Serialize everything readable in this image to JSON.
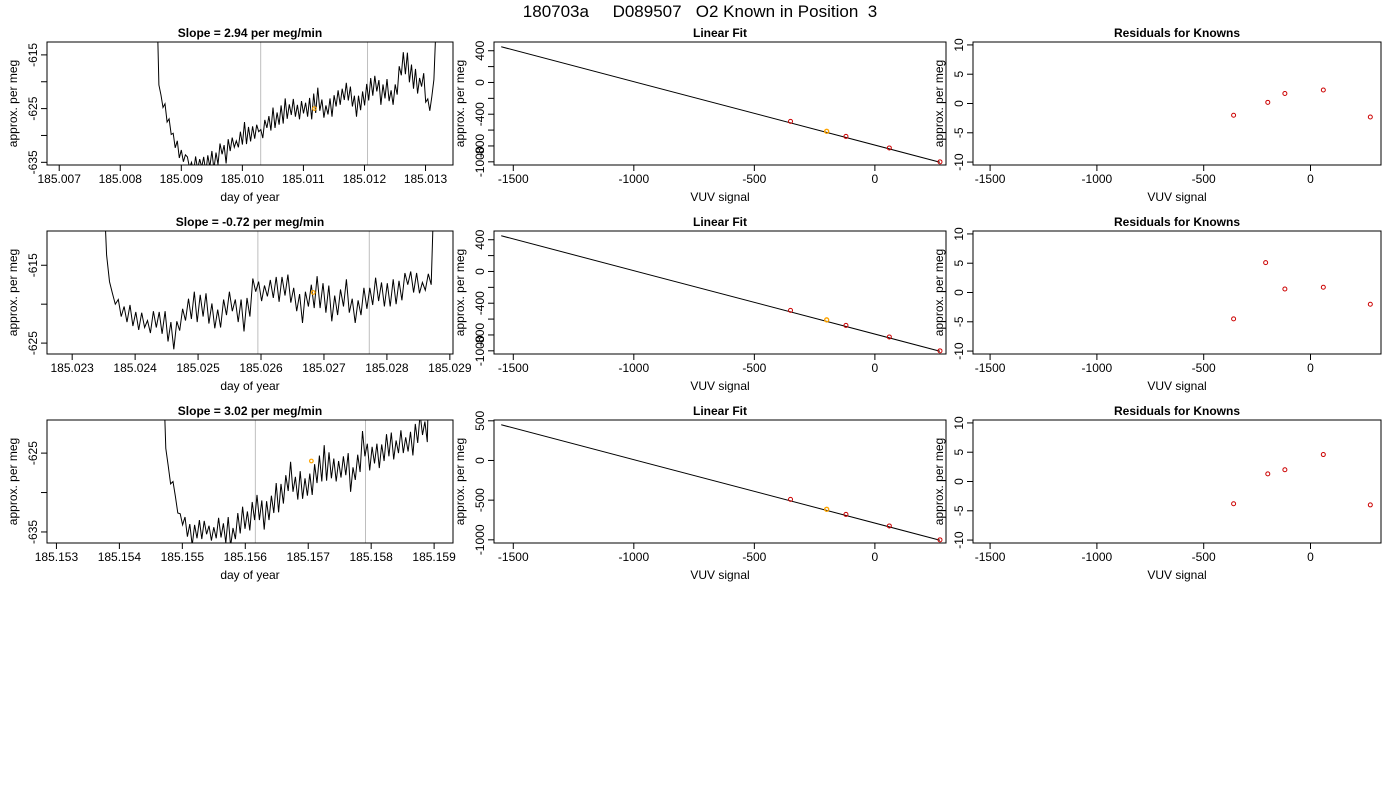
{
  "page": {
    "title": "180703a     D089507   O2 Known in Position  3",
    "colors": {
      "line": "#000000",
      "marker_current": "#ffa500",
      "marker_known": "#cc0000",
      "vline": "#bebebe"
    }
  },
  "chart_data": [
    {
      "id": "ts1",
      "type": "line",
      "title": "Slope =  2.94  per meg/min",
      "xlabel": "day of year",
      "ylabel": "approx. per meg",
      "xlim": [
        185.0068,
        185.01345
      ],
      "ylim": [
        -635.5,
        -612.6
      ],
      "xticks": [
        185.007,
        185.008,
        185.009,
        185.01,
        185.011,
        185.012,
        185.013
      ],
      "xtick_labels": [
        "185.007",
        "185.008",
        "185.009",
        "185.010",
        "185.011",
        "185.012",
        "185.013"
      ],
      "yticks": [
        -615,
        -620,
        -625,
        -630,
        -635
      ],
      "ytick_labels": [
        "-615",
        "",
        "-625",
        "",
        "-635"
      ],
      "vlines": [
        185.0103,
        185.01205
      ],
      "current_marker": {
        "x": 185.01118,
        "y": -625.0
      },
      "x_range": [
        185.0086,
        185.01317
      ],
      "y_points": [
        -605.0,
        -620.6,
        -622.5,
        -624.8,
        -624.1,
        -627.5,
        -626.9,
        -629.8,
        -629.6,
        -632.3,
        -631.0,
        -634.2,
        -632.7,
        -634.9,
        -633.6,
        -634.0,
        -636.0,
        -635.0,
        -636.8,
        -633.9,
        -636.3,
        -634.4,
        -635.9,
        -634.0,
        -636.9,
        -633.7,
        -635.9,
        -632.9,
        -636.3,
        -633.2,
        -635.4,
        -631.5,
        -633.5,
        -631.8,
        -635.2,
        -630.7,
        -632.9,
        -630.4,
        -632.2,
        -631.0,
        -632.2,
        -629.3,
        -631.7,
        -627.5,
        -631.6,
        -628.4,
        -631.1,
        -628.3,
        -630.6,
        -628.0,
        -629.3,
        -628.9,
        -630.5,
        -627.1,
        -628.6,
        -626.4,
        -629.1,
        -624.8,
        -628.6,
        -625.7,
        -628.0,
        -624.4,
        -627.8,
        -623.1,
        -626.9,
        -624.2,
        -626.2,
        -623.2,
        -626.5,
        -624.3,
        -627.0,
        -623.6,
        -625.9,
        -623.9,
        -626.5,
        -623.0,
        -627.0,
        -622.2,
        -625.8,
        -621.1,
        -625.4,
        -623.3,
        -626.7,
        -624.4,
        -626.1,
        -623.1,
        -626.5,
        -622.5,
        -624.6,
        -621.6,
        -624.3,
        -621.3,
        -623.4,
        -620.2,
        -623.5,
        -620.9,
        -624.6,
        -622.6,
        -626.5,
        -622.6,
        -625.3,
        -621.8,
        -624.4,
        -620.4,
        -623.5,
        -619.3,
        -622.6,
        -618.9,
        -621.8,
        -619.7,
        -624.3,
        -620.5,
        -623.1,
        -619.5,
        -623.6,
        -621.6,
        -624.3,
        -620.5,
        -622.4,
        -617.1,
        -618.8,
        -614.5,
        -618.6,
        -614.6,
        -620.1,
        -616.8,
        -621.3,
        -617.6,
        -622.2,
        -619.3,
        -620.9,
        -618.4,
        -623.8,
        -623.2,
        -625.4,
        -622.8,
        -619.6,
        -610.0
      ]
    },
    {
      "id": "fit1",
      "type": "scatter",
      "title": "Linear Fit",
      "xlabel": "VUV signal",
      "ylabel": "approx. per meg",
      "xlim": [
        -1580,
        295
      ],
      "ylim": [
        -1040,
        510
      ],
      "xticks": [
        -1500,
        -1000,
        -500,
        0
      ],
      "xtick_labels": [
        "-1500",
        "-1000",
        "-500",
        "0"
      ],
      "yticks": [
        400,
        200,
        0,
        -200,
        -400,
        -600,
        -800,
        -1000
      ],
      "ytick_labels": [
        "400",
        "",
        "0",
        "",
        "-400",
        "",
        "-800",
        "-1000"
      ],
      "fit_line": {
        "x": [
          -1550,
          270
        ],
        "y": [
          450,
          -1005
        ]
      },
      "known_points": [
        {
          "x": -350,
          "y": -490
        },
        {
          "x": -120,
          "y": -680
        },
        {
          "x": 60,
          "y": -825
        },
        {
          "x": 270,
          "y": -1000
        }
      ],
      "current_point": {
        "x": -200,
        "y": -615
      }
    },
    {
      "id": "res1",
      "type": "scatter",
      "title": "Residuals for Knowns",
      "xlabel": "VUV signal",
      "ylabel": "approx. per meg",
      "xlim": [
        -1580,
        330
      ],
      "ylim": [
        -10.5,
        10.5
      ],
      "xticks": [
        -1500,
        -1000,
        -500,
        0
      ],
      "xtick_labels": [
        "-1500",
        "-1000",
        "-500",
        "0"
      ],
      "yticks": [
        10,
        5,
        0,
        -5,
        -10
      ],
      "ytick_labels": [
        "10",
        "5",
        "0",
        "-5",
        "-10"
      ],
      "points": [
        {
          "x": -360,
          "y": -2.0
        },
        {
          "x": -200,
          "y": 0.2
        },
        {
          "x": -120,
          "y": 1.7
        },
        {
          "x": 60,
          "y": 2.3
        },
        {
          "x": 280,
          "y": -2.3
        }
      ]
    },
    {
      "id": "ts2",
      "type": "line",
      "title": "Slope =  -0.72  per meg/min",
      "xlabel": "day of year",
      "ylabel": "approx. per meg",
      "xlim": [
        185.0226,
        185.02905
      ],
      "ylim": [
        -626.4,
        -610.6
      ],
      "xticks": [
        185.023,
        185.024,
        185.025,
        185.026,
        185.027,
        185.028,
        185.029
      ],
      "xtick_labels": [
        "185.023",
        "185.024",
        "185.025",
        "185.026",
        "185.027",
        "185.028",
        "185.029"
      ],
      "yticks": [
        -615,
        -620,
        -625
      ],
      "ytick_labels": [
        "-615",
        "",
        "-625"
      ],
      "vlines": [
        185.02595,
        185.02772
      ],
      "current_marker": {
        "x": 185.02683,
        "y": -618.5
      },
      "x_range": [
        185.0235,
        185.02875
      ],
      "y_points": [
        -605.0,
        -613.7,
        -617.1,
        -618.6,
        -620.0,
        -619.4,
        -621.6,
        -620.3,
        -622.3,
        -620.1,
        -622.8,
        -621.0,
        -623.3,
        -621.1,
        -623.0,
        -622.1,
        -623.7,
        -620.9,
        -623.0,
        -621.0,
        -623.8,
        -620.9,
        -624.8,
        -622.3,
        -625.8,
        -622.2,
        -623.4,
        -620.6,
        -622.1,
        -619.3,
        -621.9,
        -618.4,
        -622.3,
        -618.8,
        -621.6,
        -618.6,
        -622.5,
        -619.9,
        -623.1,
        -620.7,
        -623.0,
        -619.4,
        -621.4,
        -618.4,
        -620.9,
        -619.4,
        -622.3,
        -619.4,
        -623.5,
        -619.2,
        -621.6,
        -616.7,
        -618.4,
        -617.1,
        -619.6,
        -617.6,
        -619.0,
        -616.9,
        -619.2,
        -616.5,
        -619.7,
        -616.5,
        -618.9,
        -616.2,
        -619.8,
        -617.9,
        -620.9,
        -618.7,
        -622.4,
        -618.4,
        -620.3,
        -617.5,
        -620.5,
        -616.4,
        -620.5,
        -617.3,
        -621.1,
        -617.6,
        -622.2,
        -618.9,
        -621.4,
        -618.1,
        -620.3,
        -616.8,
        -621.1,
        -619.3,
        -622.4,
        -619.5,
        -621.4,
        -617.9,
        -620.6,
        -617.9,
        -620.1,
        -616.6,
        -619.6,
        -617.2,
        -620.3,
        -617.3,
        -620.3,
        -616.8,
        -620.0,
        -617.0,
        -619.5,
        -616.0,
        -617.5,
        -615.8,
        -618.5,
        -616.0,
        -618.6,
        -617.2,
        -618.2,
        -616.1,
        -617.5,
        -605.0
      ]
    },
    {
      "id": "fit2",
      "type": "scatter",
      "title": "Linear Fit",
      "xlabel": "VUV signal",
      "ylabel": "approx. per meg",
      "xlim": [
        -1580,
        295
      ],
      "ylim": [
        -1040,
        510
      ],
      "xticks": [
        -1500,
        -1000,
        -500,
        0
      ],
      "xtick_labels": [
        "-1500",
        "-1000",
        "-500",
        "0"
      ],
      "yticks": [
        400,
        200,
        0,
        -200,
        -400,
        -600,
        -800,
        -1000
      ],
      "ytick_labels": [
        "400",
        "",
        "0",
        "",
        "-400",
        "",
        "-800",
        "-1000"
      ],
      "fit_line": {
        "x": [
          -1550,
          270
        ],
        "y": [
          450,
          -1005
        ]
      },
      "known_points": [
        {
          "x": -350,
          "y": -490
        },
        {
          "x": -120,
          "y": -680
        },
        {
          "x": 60,
          "y": -825
        },
        {
          "x": 270,
          "y": -1000
        }
      ],
      "current_point": {
        "x": -200,
        "y": -610
      }
    },
    {
      "id": "res2",
      "type": "scatter",
      "title": "Residuals for Knowns",
      "xlabel": "VUV signal",
      "ylabel": "approx. per meg",
      "xlim": [
        -1580,
        330
      ],
      "ylim": [
        -10.5,
        10.5
      ],
      "xticks": [
        -1500,
        -1000,
        -500,
        0
      ],
      "xtick_labels": [
        "-1500",
        "-1000",
        "-500",
        "0"
      ],
      "yticks": [
        10,
        5,
        0,
        -5,
        -10
      ],
      "ytick_labels": [
        "10",
        "5",
        "0",
        "-5",
        "-10"
      ],
      "points": [
        {
          "x": -360,
          "y": -4.5
        },
        {
          "x": -210,
          "y": 5.1
        },
        {
          "x": -120,
          "y": 0.6
        },
        {
          "x": 60,
          "y": 0.9
        },
        {
          "x": 280,
          "y": -2.0
        }
      ]
    },
    {
      "id": "ts3",
      "type": "line",
      "title": "Slope =  3.02  per meg/min",
      "xlabel": "day of year",
      "ylabel": "approx. per meg",
      "xlim": [
        185.15285,
        185.1593
      ],
      "ylim": [
        -636.4,
        -620.8
      ],
      "xticks": [
        185.153,
        185.154,
        185.155,
        185.156,
        185.157,
        185.158,
        185.159
      ],
      "xtick_labels": [
        "185.153",
        "185.154",
        "185.155",
        "185.156",
        "185.157",
        "185.158",
        "185.159"
      ],
      "yticks": [
        -625,
        -630,
        -635
      ],
      "ytick_labels": [
        "-625",
        "",
        "-635"
      ],
      "vlines": [
        185.15616,
        185.15791
      ],
      "current_marker": {
        "x": 185.15705,
        "y": -626.0
      },
      "x_range": [
        185.1547,
        185.15893
      ],
      "y_points": [
        -615.0,
        -624.4,
        -626.6,
        -628.9,
        -628.6,
        -630.5,
        -632.6,
        -632.7,
        -634.1,
        -633.1,
        -635.6,
        -634.0,
        -636.7,
        -634.1,
        -635.8,
        -633.5,
        -635.9,
        -633.6,
        -635.3,
        -634.2,
        -636.1,
        -634.4,
        -635.8,
        -633.2,
        -635.7,
        -633.9,
        -636.4,
        -633.1,
        -636.8,
        -634.5,
        -635.9,
        -632.6,
        -635.2,
        -631.8,
        -634.6,
        -632.4,
        -634.8,
        -631.2,
        -633.5,
        -630.3,
        -633.5,
        -631.0,
        -634.7,
        -631.1,
        -633.5,
        -630.4,
        -632.6,
        -628.8,
        -632.5,
        -628.9,
        -631.4,
        -627.8,
        -629.8,
        -626.1,
        -629.9,
        -628.0,
        -630.9,
        -627.3,
        -630.8,
        -628.2,
        -630.4,
        -627.6,
        -630.3,
        -626.4,
        -628.8,
        -625.3,
        -628.6,
        -624.0,
        -628.5,
        -624.9,
        -628.2,
        -625.7,
        -628.6,
        -626.0,
        -628.1,
        -625.4,
        -627.8,
        -625.0,
        -629.9,
        -626.8,
        -628.4,
        -625.2,
        -627.4,
        -622.2,
        -625.4,
        -623.8,
        -627.2,
        -624.2,
        -626.3,
        -623.8,
        -626.9,
        -623.9,
        -626.0,
        -622.6,
        -625.4,
        -622.4,
        -625.8,
        -623.4,
        -625.0,
        -622.1,
        -625.0,
        -623.0,
        -624.8,
        -622.3,
        -625.3,
        -621.3,
        -623.7,
        -620.0,
        -622.7,
        -621.0,
        -623.6,
        -610.0
      ]
    },
    {
      "id": "fit3",
      "type": "scatter",
      "title": "Linear Fit",
      "xlabel": "VUV signal",
      "ylabel": "approx. per meg",
      "xlim": [
        -1580,
        295
      ],
      "ylim": [
        -1040,
        510
      ],
      "xticks": [
        -1500,
        -1000,
        -500,
        0
      ],
      "xtick_labels": [
        "-1500",
        "-1000",
        "-500",
        "0"
      ],
      "yticks": [
        500,
        0,
        -500,
        -1000
      ],
      "ytick_labels": [
        "500",
        "0",
        "-500",
        "-1000"
      ],
      "fit_line": {
        "x": [
          -1550,
          270
        ],
        "y": [
          450,
          -1005
        ]
      },
      "known_points": [
        {
          "x": -350,
          "y": -490
        },
        {
          "x": -120,
          "y": -680
        },
        {
          "x": 60,
          "y": -825
        },
        {
          "x": 270,
          "y": -1000
        }
      ],
      "current_point": {
        "x": -200,
        "y": -615
      }
    },
    {
      "id": "res3",
      "type": "scatter",
      "title": "Residuals for Knowns",
      "xlabel": "VUV signal",
      "ylabel": "approx. per meg",
      "xlim": [
        -1580,
        330
      ],
      "ylim": [
        -10.5,
        10.5
      ],
      "xticks": [
        -1500,
        -1000,
        -500,
        0
      ],
      "xtick_labels": [
        "-1500",
        "-1000",
        "-500",
        "0"
      ],
      "yticks": [
        10,
        5,
        0,
        -5,
        -10
      ],
      "ytick_labels": [
        "10",
        "5",
        "0",
        "-5",
        "-10"
      ],
      "points": [
        {
          "x": -360,
          "y": -3.8
        },
        {
          "x": -200,
          "y": 1.3
        },
        {
          "x": -120,
          "y": 2.0
        },
        {
          "x": 60,
          "y": 4.6
        },
        {
          "x": 280,
          "y": -4.0
        }
      ]
    }
  ]
}
